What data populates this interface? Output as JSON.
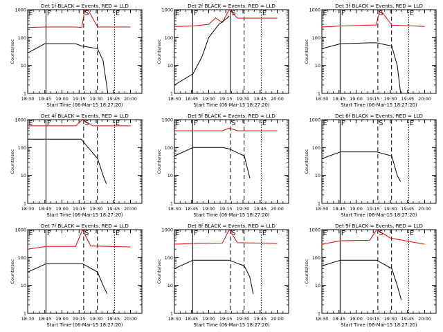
{
  "colors": {
    "events": "#000000",
    "lld": "#e00000",
    "axis": "#000000"
  },
  "chart_data": [
    {
      "id": 1,
      "type": "line",
      "title": "Det 1f BLACK = Events, RED = LLD",
      "xlabel": "Start Time (06-Mar-15 18:27:20)",
      "ylabel": "Counts/sec",
      "yscale": "log",
      "ylim": [
        1,
        1000
      ],
      "xlim": [
        "18:30",
        "20:10"
      ],
      "x_ticks": [
        "18:30",
        "18:45",
        "19:00",
        "19:15",
        "19:30",
        "19:45",
        "20:00"
      ],
      "y_ticks": [
        "1",
        "10",
        "100",
        "1000"
      ],
      "markers": [
        {
          "t": "18:30",
          "style": "solid",
          "label": "E"
        },
        {
          "t": "18:46",
          "style": "solid",
          "label": "F"
        },
        {
          "t": "19:19",
          "style": "dashed",
          "label": "S"
        },
        {
          "t": "19:31",
          "style": "dashed",
          "label": ""
        },
        {
          "t": "19:46",
          "style": "dotted",
          "label": "E"
        }
      ],
      "series": [
        {
          "color": "red",
          "values": [
            [
              18.5,
              230
            ],
            [
              18.75,
              240
            ],
            [
              19.2,
              240
            ],
            [
              19.29,
              230
            ],
            [
              19.33,
              900
            ],
            [
              19.38,
              1000
            ],
            [
              19.52,
              240
            ],
            [
              20.0,
              240
            ]
          ]
        },
        {
          "color": "black",
          "values": [
            [
              18.5,
              28
            ],
            [
              18.75,
              60
            ],
            [
              19.2,
              60
            ],
            [
              19.29,
              50
            ],
            [
              19.52,
              40
            ],
            [
              19.6,
              15
            ],
            [
              19.67,
              1
            ]
          ]
        }
      ]
    },
    {
      "id": 2,
      "type": "line",
      "title": "Det 2f BLACK = Events, RED = LLD",
      "xlabel": "Start Time (06-Mar-15 18:27:20)",
      "ylabel": "Counts/sec",
      "yscale": "log",
      "ylim": [
        1,
        1000
      ],
      "xlim": [
        "18:30",
        "20:10"
      ],
      "x_ticks": [
        "18:30",
        "18:45",
        "19:00",
        "19:15",
        "19:30",
        "19:45",
        "20:00"
      ],
      "y_ticks": [
        "1",
        "10",
        "100",
        "1000"
      ],
      "markers": [
        {
          "t": "18:30",
          "style": "solid",
          "label": "E"
        },
        {
          "t": "18:46",
          "style": "solid",
          "label": "F"
        },
        {
          "t": "19:19",
          "style": "solid",
          "label": "S"
        },
        {
          "t": "19:31",
          "style": "dashed",
          "label": ""
        },
        {
          "t": "19:46",
          "style": "dotted",
          "label": "E"
        }
      ],
      "series": [
        {
          "color": "red",
          "values": [
            [
              18.5,
              250
            ],
            [
              18.77,
              260
            ],
            [
              19.0,
              300
            ],
            [
              19.1,
              500
            ],
            [
              19.2,
              350
            ],
            [
              19.3,
              1000
            ],
            [
              19.42,
              500
            ],
            [
              20.0,
              500
            ]
          ]
        },
        {
          "color": "black",
          "values": [
            [
              18.5,
              2
            ],
            [
              18.77,
              5
            ],
            [
              18.9,
              20
            ],
            [
              19.0,
              100
            ],
            [
              19.15,
              300
            ],
            [
              19.27,
              500
            ],
            [
              19.3,
              600
            ]
          ]
        }
      ]
    },
    {
      "id": 3,
      "type": "line",
      "title": "Det 3f BLACK = Events, RED = LLD",
      "xlabel": "Start Time (06-Mar-15 18:27:20)",
      "ylabel": "Counts/sec",
      "yscale": "log",
      "ylim": [
        1,
        1000
      ],
      "xlim": [
        "18:30",
        "20:10"
      ],
      "x_ticks": [
        "18:30",
        "18:45",
        "19:00",
        "19:15",
        "19:30",
        "19:45",
        "20:00"
      ],
      "y_ticks": [
        "1",
        "10",
        "100",
        "1000"
      ],
      "markers": [
        {
          "t": "18:30",
          "style": "solid",
          "label": "E"
        },
        {
          "t": "18:46",
          "style": "solid",
          "label": "F"
        },
        {
          "t": "19:19",
          "style": "dashed",
          "label": "S"
        },
        {
          "t": "19:31",
          "style": "dashed",
          "label": ""
        },
        {
          "t": "19:46",
          "style": "dotted",
          "label": "E"
        }
      ],
      "series": [
        {
          "color": "red",
          "values": [
            [
              18.5,
              240
            ],
            [
              18.77,
              260
            ],
            [
              19.2,
              280
            ],
            [
              19.29,
              280
            ],
            [
              19.35,
              1000
            ],
            [
              19.52,
              280
            ],
            [
              20.0,
              250
            ]
          ]
        },
        {
          "color": "black",
          "values": [
            [
              18.5,
              40
            ],
            [
              18.77,
              60
            ],
            [
              19.2,
              65
            ],
            [
              19.29,
              65
            ],
            [
              19.52,
              50
            ],
            [
              19.6,
              10
            ],
            [
              19.65,
              1
            ]
          ]
        }
      ]
    },
    {
      "id": 4,
      "type": "line",
      "title": "Det 4f BLACK = Events, RED = LLD",
      "xlabel": "Start Time (06-Mar-15 18:27:20)",
      "ylabel": "Counts/sec",
      "yscale": "log",
      "ylim": [
        1,
        1000
      ],
      "xlim": [
        "18:30",
        "20:10"
      ],
      "x_ticks": [
        "18:30",
        "18:45",
        "19:00",
        "19:15",
        "19:30",
        "19:45",
        "20:00"
      ],
      "y_ticks": [
        "1",
        "10",
        "100",
        "1000"
      ],
      "markers": [
        {
          "t": "18:30",
          "style": "solid",
          "label": "E"
        },
        {
          "t": "18:46",
          "style": "solid",
          "label": "F"
        },
        {
          "t": "19:19",
          "style": "dashed",
          "label": "S"
        },
        {
          "t": "19:31",
          "style": "dashed",
          "label": ""
        },
        {
          "t": "19:46",
          "style": "dotted",
          "label": "E"
        }
      ],
      "series": [
        {
          "color": "red",
          "values": [
            [
              18.5,
              600
            ],
            [
              19.2,
              600
            ],
            [
              19.3,
              1000
            ],
            [
              19.45,
              600
            ],
            [
              20.0,
              600
            ]
          ]
        },
        {
          "color": "black",
          "values": [
            [
              18.5,
              200
            ],
            [
              19.2,
              200
            ],
            [
              19.28,
              200
            ],
            [
              19.52,
              40
            ],
            [
              19.6,
              10
            ],
            [
              19.65,
              5
            ]
          ]
        }
      ]
    },
    {
      "id": 5,
      "type": "line",
      "title": "Det 5f BLACK = Events, RED = LLD",
      "xlabel": "Start Time (06-Mar-15 18:27:20)",
      "ylabel": "Counts/sec",
      "yscale": "log",
      "ylim": [
        1,
        1000
      ],
      "xlim": [
        "18:30",
        "20:10"
      ],
      "x_ticks": [
        "18:30",
        "18:45",
        "19:00",
        "19:15",
        "19:30",
        "19:45",
        "20:00"
      ],
      "y_ticks": [
        "1",
        "10",
        "100",
        "1000"
      ],
      "markers": [
        {
          "t": "18:30",
          "style": "solid",
          "label": "E"
        },
        {
          "t": "18:46",
          "style": "solid",
          "label": "F"
        },
        {
          "t": "19:19",
          "style": "dashed",
          "label": "S"
        },
        {
          "t": "19:31",
          "style": "dashed",
          "label": ""
        },
        {
          "t": "19:46",
          "style": "dotted",
          "label": "E"
        }
      ],
      "series": [
        {
          "color": "red",
          "values": [
            [
              18.5,
              400
            ],
            [
              18.77,
              400
            ],
            [
              19.2,
              400
            ],
            [
              19.3,
              500
            ],
            [
              19.42,
              400
            ],
            [
              20.0,
              400
            ]
          ]
        },
        {
          "color": "black",
          "values": [
            [
              18.5,
              50
            ],
            [
              18.77,
              100
            ],
            [
              19.2,
              100
            ],
            [
              19.3,
              90
            ],
            [
              19.52,
              50
            ],
            [
              19.6,
              8
            ]
          ]
        }
      ]
    },
    {
      "id": 6,
      "type": "line",
      "title": "Det 6f BLACK = Events, RED = LLD",
      "xlabel": "Start Time (06-Mar-15 18:27:20)",
      "ylabel": "Counts/sec",
      "yscale": "log",
      "ylim": [
        1,
        1000
      ],
      "xlim": [
        "18:30",
        "20:10"
      ],
      "x_ticks": [
        "18:30",
        "18:45",
        "19:00",
        "19:15",
        "19:30",
        "19:45",
        "20:00"
      ],
      "y_ticks": [
        "1",
        "10",
        "100",
        "1000"
      ],
      "markers": [
        {
          "t": "18:30",
          "style": "solid",
          "label": "E"
        },
        {
          "t": "18:46",
          "style": "solid",
          "label": "F"
        },
        {
          "t": "19:19",
          "style": "dashed",
          "label": "S"
        },
        {
          "t": "19:31",
          "style": "dashed",
          "label": ""
        },
        {
          "t": "19:46",
          "style": "dotted",
          "label": "E"
        }
      ],
      "series": [
        {
          "color": "black",
          "values": [
            [
              18.5,
              40
            ],
            [
              18.77,
              70
            ],
            [
              19.2,
              70
            ],
            [
              19.3,
              70
            ],
            [
              19.52,
              50
            ],
            [
              19.6,
              10
            ],
            [
              19.65,
              6
            ]
          ]
        }
      ]
    },
    {
      "id": 7,
      "type": "line",
      "title": "Det 7f BLACK = Events, RED = LLD",
      "xlabel": "Start Time (06-Mar-15 18:27:20)",
      "ylabel": "Counts/sec",
      "yscale": "log",
      "ylim": [
        1,
        1000
      ],
      "xlim": [
        "18:30",
        "20:10"
      ],
      "x_ticks": [
        "18:30",
        "18:45",
        "19:00",
        "19:15",
        "19:30",
        "19:45",
        "20:00"
      ],
      "y_ticks": [
        "1",
        "10",
        "100",
        "1000"
      ],
      "markers": [
        {
          "t": "18:30",
          "style": "solid",
          "label": "E"
        },
        {
          "t": "18:46",
          "style": "solid",
          "label": "F"
        },
        {
          "t": "19:19",
          "style": "dashed",
          "label": "S"
        },
        {
          "t": "19:31",
          "style": "dashed",
          "label": ""
        },
        {
          "t": "19:46",
          "style": "dotted",
          "label": "E"
        }
      ],
      "series": [
        {
          "color": "red",
          "values": [
            [
              18.5,
              200
            ],
            [
              18.77,
              250
            ],
            [
              19.2,
              250
            ],
            [
              19.3,
              1000
            ],
            [
              19.42,
              260
            ],
            [
              20.0,
              240
            ]
          ]
        },
        {
          "color": "black",
          "values": [
            [
              18.5,
              30
            ],
            [
              18.77,
              60
            ],
            [
              19.2,
              60
            ],
            [
              19.3,
              60
            ],
            [
              19.52,
              30
            ],
            [
              19.6,
              10
            ],
            [
              19.66,
              5
            ]
          ]
        }
      ]
    },
    {
      "id": 8,
      "type": "line",
      "title": "Det 8f BLACK = Events, RED = LLD",
      "xlabel": "Start Time (06-Mar-15 18:27:20)",
      "ylabel": "Counts/sec",
      "yscale": "log",
      "ylim": [
        1,
        1000
      ],
      "xlim": [
        "18:30",
        "20:10"
      ],
      "x_ticks": [
        "18:30",
        "18:45",
        "19:00",
        "19:15",
        "19:30",
        "19:45",
        "20:00"
      ],
      "y_ticks": [
        "1",
        "10",
        "100",
        "1000"
      ],
      "markers": [
        {
          "t": "18:30",
          "style": "solid",
          "label": "E"
        },
        {
          "t": "18:46",
          "style": "solid",
          "label": "F"
        },
        {
          "t": "19:19",
          "style": "dashed",
          "label": "S"
        },
        {
          "t": "19:31",
          "style": "dashed",
          "label": ""
        },
        {
          "t": "19:46",
          "style": "dotted",
          "label": "E"
        }
      ],
      "series": [
        {
          "color": "red",
          "values": [
            [
              18.5,
              300
            ],
            [
              18.77,
              320
            ],
            [
              19.2,
              330
            ],
            [
              19.3,
              1000
            ],
            [
              19.42,
              340
            ],
            [
              20.0,
              320
            ]
          ]
        },
        {
          "color": "black",
          "values": [
            [
              18.5,
              40
            ],
            [
              18.77,
              80
            ],
            [
              19.2,
              80
            ],
            [
              19.3,
              80
            ],
            [
              19.52,
              50
            ],
            [
              19.6,
              20
            ],
            [
              19.65,
              5
            ]
          ]
        }
      ]
    },
    {
      "id": 9,
      "type": "line",
      "title": "Det 9f BLACK = Events, RED = LLD",
      "xlabel": "Start Time (06-Mar-15 18:27:20)",
      "ylabel": "Counts/sec",
      "yscale": "log",
      "ylim": [
        1,
        1000
      ],
      "xlim": [
        "18:30",
        "20:10"
      ],
      "x_ticks": [
        "18:30",
        "18:45",
        "19:00",
        "19:15",
        "19:30",
        "19:45",
        "20:00"
      ],
      "y_ticks": [
        "1",
        "10",
        "100",
        "1000"
      ],
      "markers": [
        {
          "t": "18:30",
          "style": "solid",
          "label": "E"
        },
        {
          "t": "18:46",
          "style": "solid",
          "label": "F"
        },
        {
          "t": "19:19",
          "style": "dashed",
          "label": "S"
        },
        {
          "t": "19:31",
          "style": "dashed",
          "label": ""
        },
        {
          "t": "19:46",
          "style": "dotted",
          "label": "E"
        }
      ],
      "series": [
        {
          "color": "red",
          "values": [
            [
              18.5,
              300
            ],
            [
              18.77,
              400
            ],
            [
              19.2,
              420
            ],
            [
              19.3,
              1000
            ],
            [
              19.5,
              500
            ],
            [
              20.0,
              300
            ]
          ]
        },
        {
          "color": "black",
          "values": [
            [
              18.5,
              50
            ],
            [
              18.77,
              80
            ],
            [
              19.2,
              80
            ],
            [
              19.3,
              80
            ],
            [
              19.52,
              40
            ],
            [
              19.6,
              10
            ],
            [
              19.66,
              3
            ]
          ]
        }
      ]
    }
  ]
}
